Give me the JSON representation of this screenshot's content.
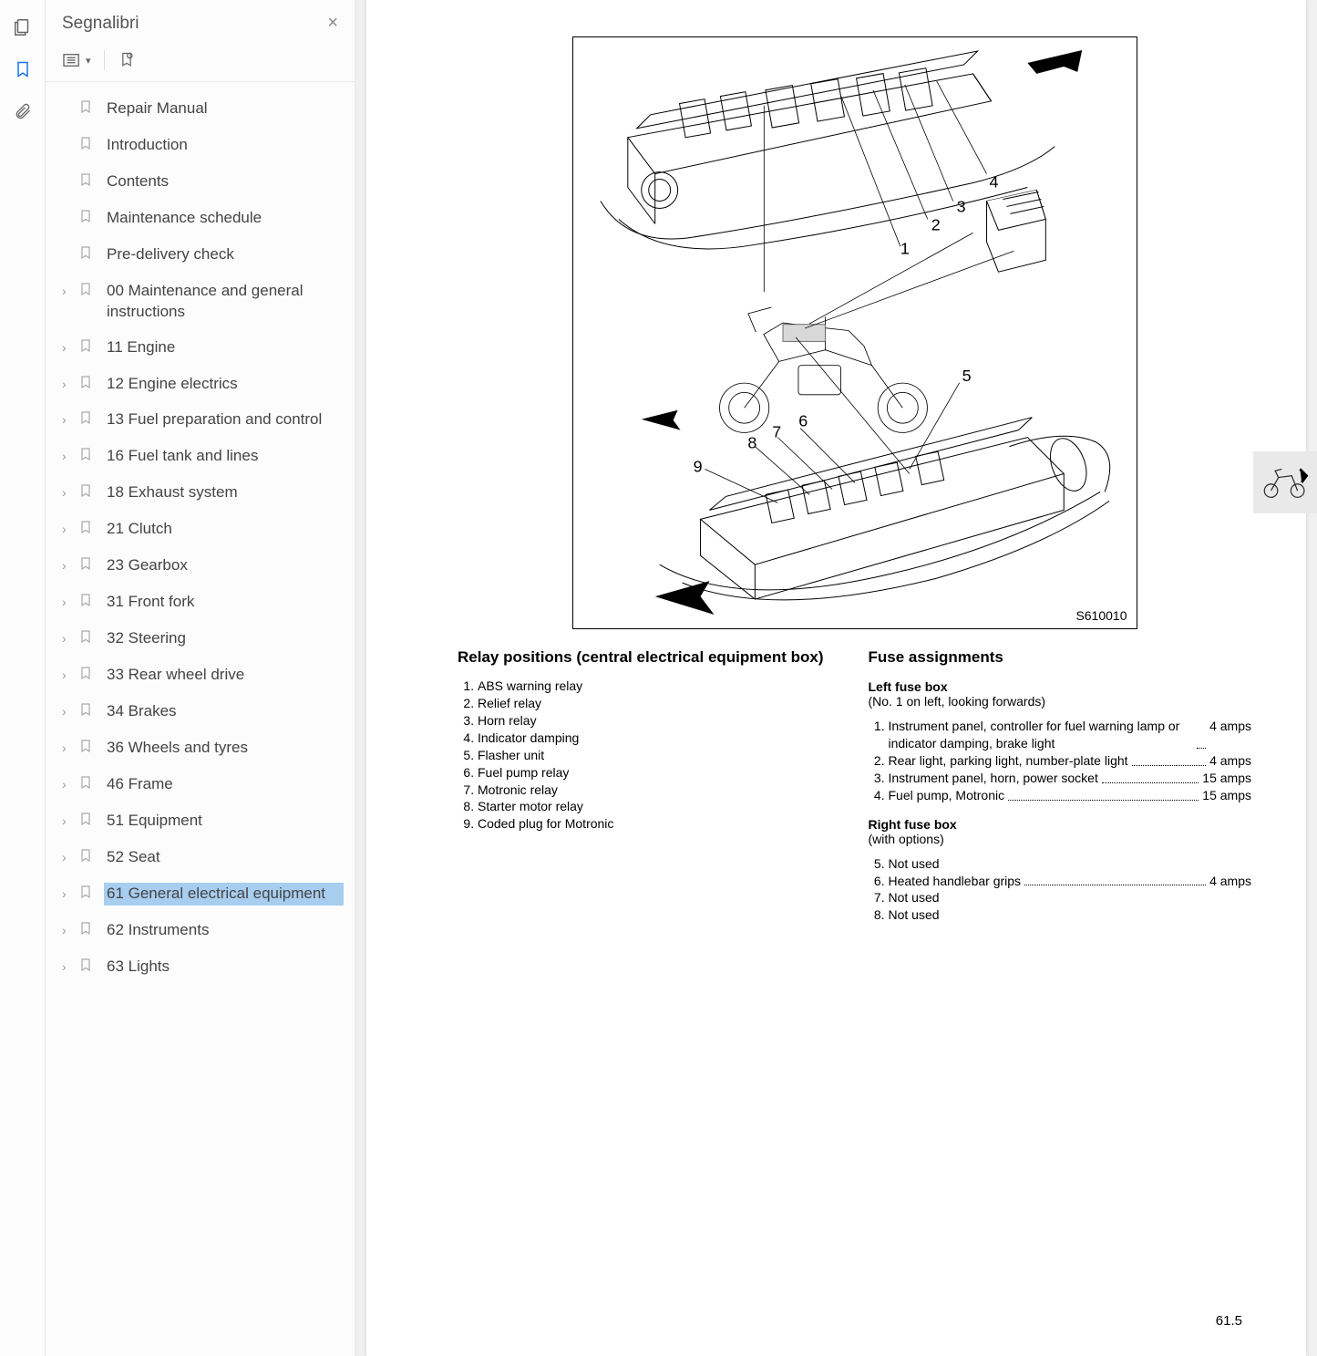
{
  "sidebar": {
    "title": "Segnalibri",
    "items": [
      {
        "label": "Repair Manual",
        "expandable": false
      },
      {
        "label": "Introduction",
        "expandable": false
      },
      {
        "label": "Contents",
        "expandable": false
      },
      {
        "label": "Maintenance schedule",
        "expandable": false
      },
      {
        "label": "Pre-delivery check",
        "expandable": false
      },
      {
        "label": "00 Maintenance and general instructions",
        "expandable": true
      },
      {
        "label": "11 Engine",
        "expandable": true
      },
      {
        "label": "12 Engine electrics",
        "expandable": true
      },
      {
        "label": "13 Fuel preparation and control",
        "expandable": true
      },
      {
        "label": "16 Fuel tank and lines",
        "expandable": true
      },
      {
        "label": "18 Exhaust system",
        "expandable": true
      },
      {
        "label": "21 Clutch",
        "expandable": true
      },
      {
        "label": "23 Gearbox",
        "expandable": true
      },
      {
        "label": "31 Front fork",
        "expandable": true
      },
      {
        "label": "32 Steering",
        "expandable": true
      },
      {
        "label": "33 Rear wheel drive",
        "expandable": true
      },
      {
        "label": "34 Brakes",
        "expandable": true
      },
      {
        "label": "36 Wheels and tyres",
        "expandable": true
      },
      {
        "label": "46 Frame",
        "expandable": true
      },
      {
        "label": "51 Equipment",
        "expandable": true
      },
      {
        "label": "52 Seat",
        "expandable": true
      },
      {
        "label": "61 General electrical equipment",
        "expandable": true,
        "selected": true
      },
      {
        "label": "62 Instruments",
        "expandable": true
      },
      {
        "label": "63 Lights",
        "expandable": true
      }
    ]
  },
  "page": {
    "figure_id": "S610010",
    "page_number": "61.5",
    "left_col": {
      "heading": "Relay positions (central electrical equipment box)",
      "items": [
        "ABS warning relay",
        "Relief relay",
        "Horn relay",
        "Indicator damping",
        "Flasher unit",
        "Fuel pump relay",
        "Motronic relay",
        "Starter motor relay",
        "Coded plug for Motronic"
      ]
    },
    "right_col": {
      "heading": "Fuse assignments",
      "left_box": {
        "title": "Left fuse box",
        "subtitle": "(No. 1 on left, looking forwards)",
        "items": [
          {
            "n": "1.",
            "desc": "Instrument panel, controller for fuel warning lamp or indicator damping, brake light",
            "amp": "4 amps"
          },
          {
            "n": "2.",
            "desc": "Rear light, parking light, number-plate light",
            "amp": "4 amps"
          },
          {
            "n": "3.",
            "desc": "Instrument panel, horn, power socket",
            "amp": "15 amps"
          },
          {
            "n": "4.",
            "desc": "Fuel pump, Motronic",
            "amp": "15 amps"
          }
        ]
      },
      "right_box": {
        "title": "Right fuse box",
        "subtitle": "(with options)",
        "items": [
          {
            "n": "5.",
            "desc": "Not used",
            "amp": ""
          },
          {
            "n": "6.",
            "desc": "Heated handlebar grips",
            "amp": "4 amps"
          },
          {
            "n": "7.",
            "desc": "Not used",
            "amp": ""
          },
          {
            "n": "8.",
            "desc": "Not used",
            "amp": ""
          }
        ]
      }
    },
    "callouts": [
      "1",
      "2",
      "3",
      "4",
      "5",
      "6",
      "7",
      "8",
      "9"
    ]
  }
}
